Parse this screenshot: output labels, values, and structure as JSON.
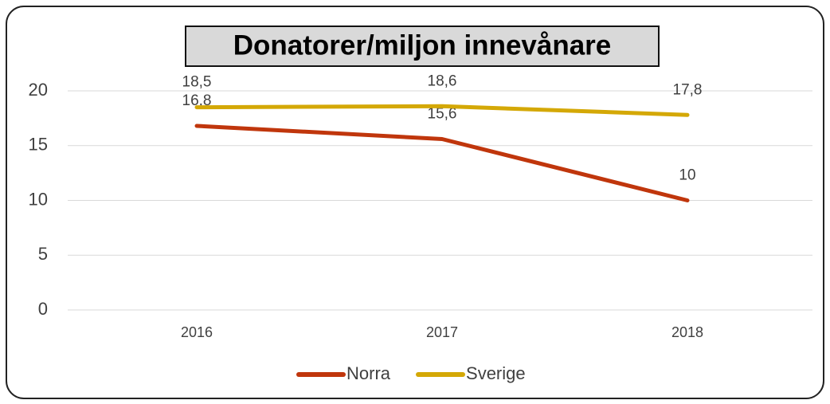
{
  "chart_data": {
    "type": "line",
    "title": "Donatorer/miljon innevånare",
    "categories": [
      "2016",
      "2017",
      "2018"
    ],
    "series": [
      {
        "name": "Norra",
        "color": "#c0360c",
        "values": [
          16.8,
          15.6,
          10
        ],
        "value_labels": [
          "16,8",
          "15,6",
          "10"
        ]
      },
      {
        "name": "Sverige",
        "color": "#d4a806",
        "values": [
          18.5,
          18.6,
          17.8
        ],
        "value_labels": [
          "18,5",
          "18,6",
          "17,8"
        ]
      }
    ],
    "ylim": [
      0,
      20
    ],
    "yticks": [
      0,
      5,
      10,
      15,
      20
    ],
    "grid": true,
    "legend": "bottom"
  }
}
